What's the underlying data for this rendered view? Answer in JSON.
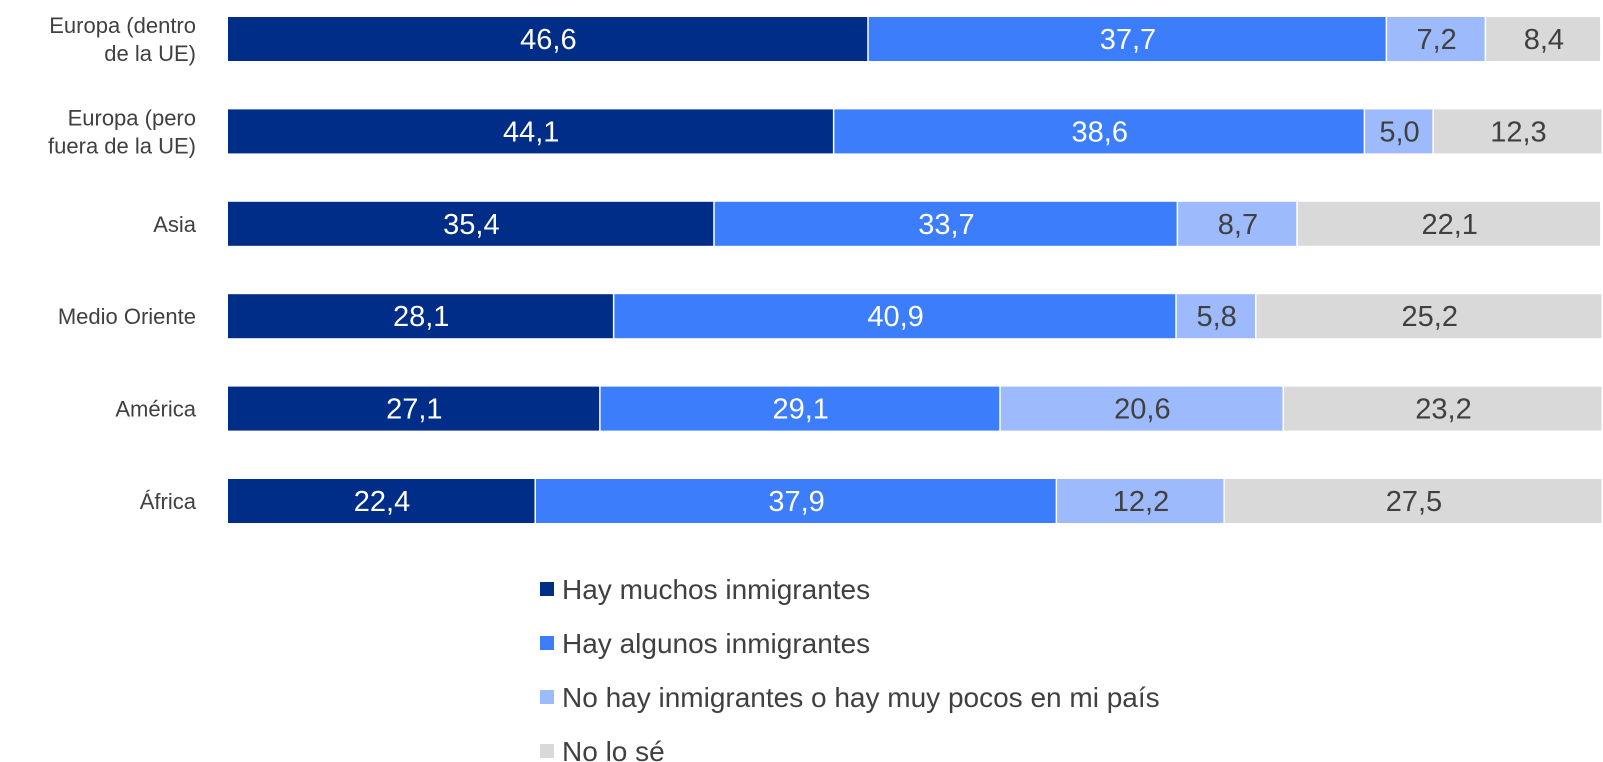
{
  "chart_data": {
    "type": "bar",
    "orientation": "horizontal",
    "stacked": true,
    "categories": [
      "Europa (dentro de la UE)",
      "Europa (pero fuera de la UE)",
      "Asia",
      "Medio Oriente",
      "América",
      "África"
    ],
    "category_lines": [
      [
        "Europa (dentro",
        "de la UE)"
      ],
      [
        "Europa (pero",
        "fuera de la UE)"
      ],
      [
        "Asia"
      ],
      [
        "Medio Oriente"
      ],
      [
        "América"
      ],
      [
        "África"
      ]
    ],
    "series": [
      {
        "name": "Hay muchos inmigrantes",
        "color": "#002d87",
        "label_color": "#ffffff",
        "values": [
          46.6,
          44.1,
          35.4,
          28.1,
          27.1,
          22.4
        ],
        "labels": [
          "46,6",
          "44,1",
          "35,4",
          "28,1",
          "27,1",
          "22,4"
        ]
      },
      {
        "name": "Hay algunos inmigrantes",
        "color": "#3c7dfb",
        "label_color": "#ffffff",
        "values": [
          37.7,
          38.6,
          33.7,
          40.9,
          29.1,
          37.9
        ],
        "labels": [
          "37,7",
          "38,6",
          "33,7",
          "40,9",
          "29,1",
          "37,9"
        ]
      },
      {
        "name": "No hay inmigrantes o hay muy pocos en mi país",
        "color": "#9dbafd",
        "label_color": "#404040",
        "values": [
          7.2,
          5.0,
          8.7,
          5.8,
          20.6,
          12.2
        ],
        "labels": [
          "7,2",
          "5,0",
          "8,7",
          "5,8",
          "20,6",
          "12,2"
        ]
      },
      {
        "name": "No lo sé",
        "color": "#d9d9d9",
        "label_color": "#404040",
        "values": [
          8.4,
          12.3,
          22.1,
          25.2,
          23.2,
          27.5
        ],
        "labels": [
          "8,4",
          "12,3",
          "22,1",
          "25,2",
          "23,2",
          "27,5"
        ]
      }
    ],
    "xlim": [
      0,
      100
    ],
    "grid": false,
    "legend_position": "bottom"
  }
}
